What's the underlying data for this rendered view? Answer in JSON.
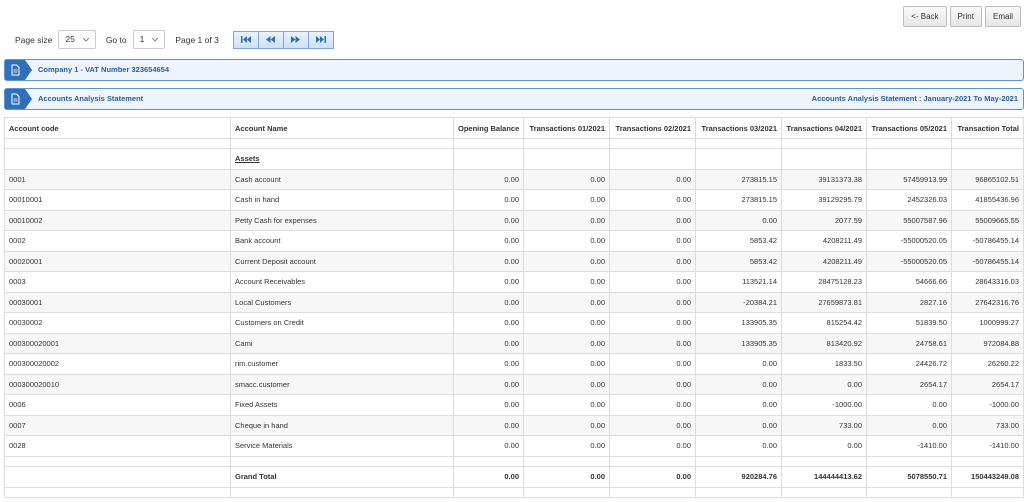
{
  "toolbar": {
    "buttons": [
      "<- Back",
      "Print",
      "Email"
    ]
  },
  "pager": {
    "page_size_label": "Page size",
    "page_size": "25",
    "goto_label": "Go to",
    "goto_page": "1",
    "page_info": "Page 1 of 3"
  },
  "panels": [
    {
      "title": "Company 1 - VAT Number 323654654"
    },
    {
      "title": "Accounts Analysis Statement",
      "subtitle": "Accounts Analysis Statement : January-2021 To May-2021"
    }
  ],
  "table": {
    "header": [
      "Account code",
      "Account Name",
      "Opening Balance",
      "Transactions 01/2021",
      "Transactions 02/2021",
      "Transactions 03/2021",
      "Transactions 04/2021",
      "Transactions 05/2021",
      "Transaction Total"
    ],
    "section": "Assets",
    "rows": [
      [
        "0001",
        "Cash account",
        "0.00",
        "0.00",
        "0.00",
        "273815.15",
        "39131373.38",
        "57459913.99",
        "96865102.51"
      ],
      [
        "00010001",
        "Cash in hand",
        "0.00",
        "0.00",
        "0.00",
        "273815.15",
        "39129295.79",
        "2452326.03",
        "41855436.96"
      ],
      [
        "00010002",
        "Petty Cash for expenses",
        "0.00",
        "0.00",
        "0.00",
        "0.00",
        "2077.59",
        "55007587.96",
        "55009665.55"
      ],
      [
        "0002",
        "Bank account",
        "0.00",
        "0.00",
        "0.00",
        "5853.42",
        "4208211.49",
        "-55000520.05",
        "-50786455.14"
      ],
      [
        "00020001",
        "Current Deposit account",
        "0.00",
        "0.00",
        "0.00",
        "5853.42",
        "4208211.49",
        "-55000520.05",
        "-50786455.14"
      ],
      [
        "0003",
        "Account Receivables",
        "0.00",
        "0.00",
        "0.00",
        "113521.14",
        "28475128.23",
        "54666.66",
        "28643316.03"
      ],
      [
        "00030001",
        "Local Customers",
        "0.00",
        "0.00",
        "0.00",
        "-20384.21",
        "27659873.81",
        "2827.16",
        "27642316.76"
      ],
      [
        "00030002",
        "Customers on Credit",
        "0.00",
        "0.00",
        "0.00",
        "133905.35",
        "815254.42",
        "51839.50",
        "1000999.27"
      ],
      [
        "000300020001",
        "Cami",
        "0.00",
        "0.00",
        "0.00",
        "133905.35",
        "813420.92",
        "24758.61",
        "972084.88"
      ],
      [
        "000300020002",
        "rim.customer",
        "0.00",
        "0.00",
        "0.00",
        "0.00",
        "1833.50",
        "24426.72",
        "26260.22"
      ],
      [
        "000300020010",
        "smacc.customer",
        "0.00",
        "0.00",
        "0.00",
        "0.00",
        "0.00",
        "2654.17",
        "2654.17"
      ],
      [
        "0006",
        "Fixed Assets",
        "0.00",
        "0.00",
        "0.00",
        "0.00",
        "-1000.00",
        "0.00",
        "-1000.00"
      ],
      [
        "0007",
        "Cheque in hand",
        "0.00",
        "0.00",
        "0.00",
        "0.00",
        "733.00",
        "0.00",
        "733.00"
      ],
      [
        "0028",
        "Service Materials",
        "0.00",
        "0.00",
        "0.00",
        "0.00",
        "0.00",
        "-1410.00",
        "-1410.00"
      ]
    ],
    "grand_total": {
      "label": "Grand Total",
      "values": [
        "0.00",
        "0.00",
        "0.00",
        "920284.76",
        "144444413.62",
        "5078550.71",
        "150443249.08"
      ]
    }
  }
}
